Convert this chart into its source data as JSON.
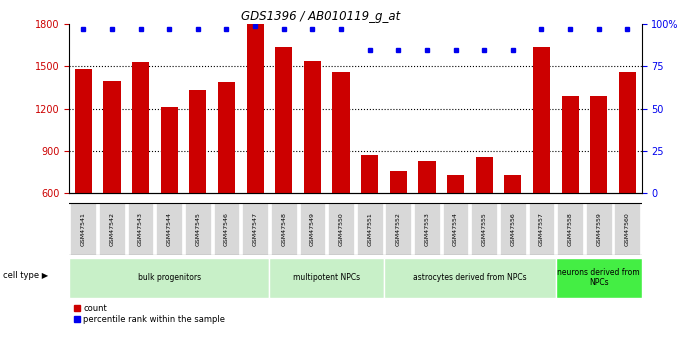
{
  "title": "GDS1396 / AB010119_g_at",
  "samples": [
    "GSM47541",
    "GSM47542",
    "GSM47543",
    "GSM47544",
    "GSM47545",
    "GSM47546",
    "GSM47547",
    "GSM47548",
    "GSM47549",
    "GSM47550",
    "GSM47551",
    "GSM47552",
    "GSM47553",
    "GSM47554",
    "GSM47555",
    "GSM47556",
    "GSM47557",
    "GSM47558",
    "GSM47559",
    "GSM47560"
  ],
  "counts": [
    1480,
    1400,
    1530,
    1210,
    1330,
    1390,
    1800,
    1640,
    1540,
    1460,
    870,
    760,
    830,
    730,
    860,
    730,
    1640,
    1290,
    1290,
    1460
  ],
  "percentile": [
    97,
    97,
    97,
    97,
    97,
    97,
    99,
    97,
    97,
    97,
    85,
    85,
    85,
    85,
    85,
    85,
    97,
    97,
    97,
    97
  ],
  "cell_types": [
    {
      "label": "bulk progenitors",
      "start": 0,
      "end": 6,
      "color": "#c8f0c8"
    },
    {
      "label": "multipotent NPCs",
      "start": 7,
      "end": 10,
      "color": "#c8f0c8"
    },
    {
      "label": "astrocytes derived from NPCs",
      "start": 11,
      "end": 16,
      "color": "#c8f0c8"
    },
    {
      "label": "neurons derived from\nNPCs",
      "start": 17,
      "end": 19,
      "color": "#44ee44"
    }
  ],
  "bar_color": "#cc0000",
  "dot_color": "#0000ee",
  "ylim_left": [
    600,
    1800
  ],
  "ylim_right": [
    0,
    100
  ],
  "yticks_left": [
    600,
    900,
    1200,
    1500,
    1800
  ],
  "yticks_right": [
    0,
    25,
    50,
    75,
    100
  ],
  "ytick_right_labels": [
    "0",
    "25",
    "50",
    "75",
    "100%"
  ],
  "grid_values": [
    900,
    1200,
    1500
  ],
  "plot_bg_color": "#ffffff",
  "xtick_bg_color": "#d8d8d8",
  "legend_count_label": "count",
  "legend_pct_label": "percentile rank within the sample",
  "cell_type_label": "cell type"
}
